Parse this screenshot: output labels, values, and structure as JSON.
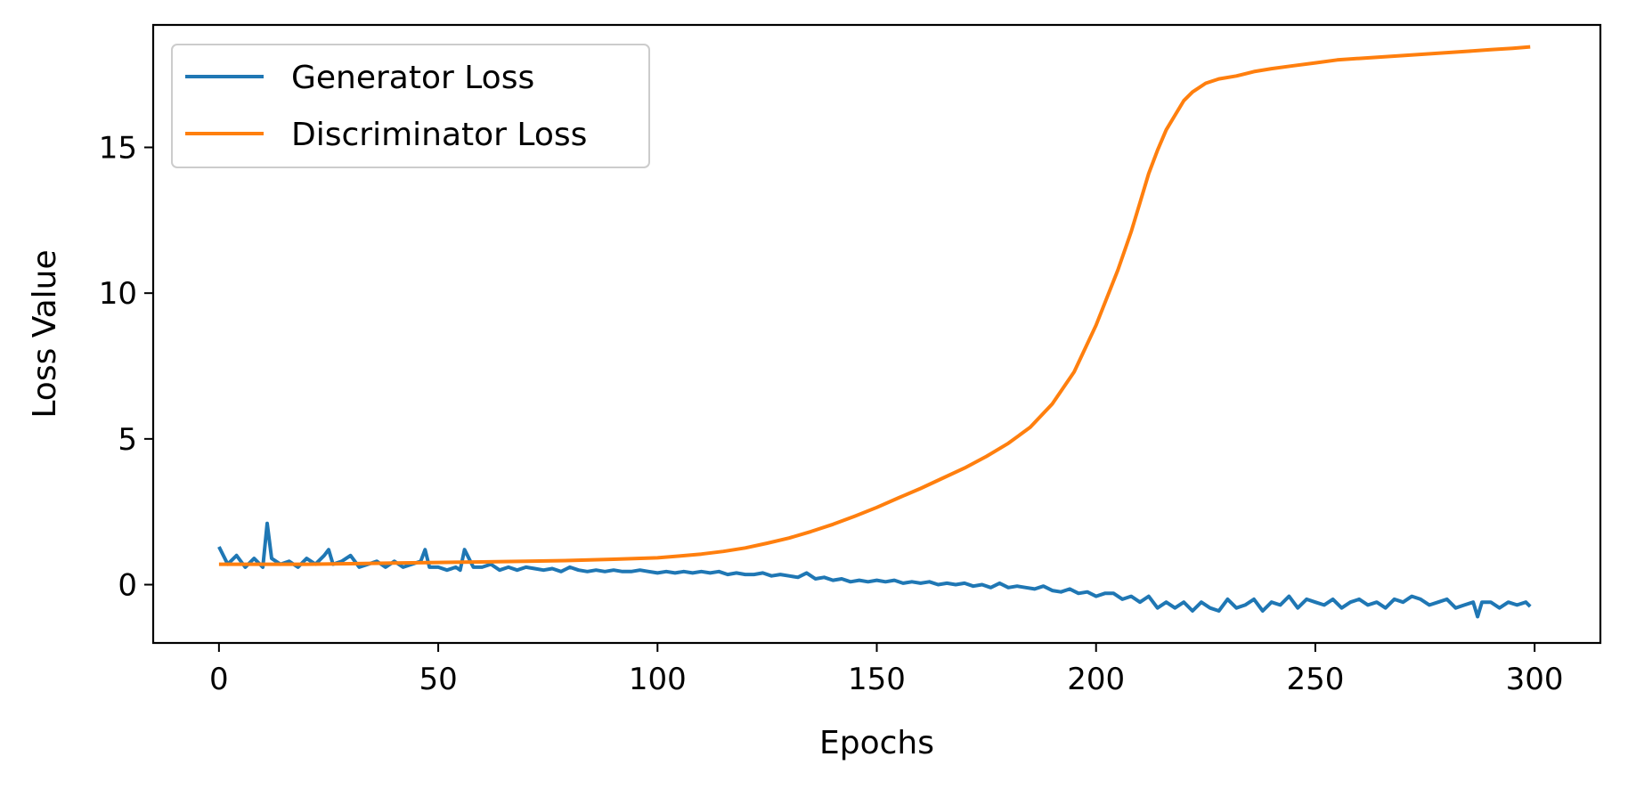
{
  "chart_data": {
    "type": "line",
    "title": "",
    "xlabel": "Epochs",
    "ylabel": "Loss Value",
    "xlim": [
      -15,
      315
    ],
    "ylim": [
      -2,
      19.2
    ],
    "xticks": [
      0,
      50,
      100,
      150,
      200,
      250,
      300
    ],
    "yticks": [
      0,
      5,
      10,
      15
    ],
    "grid": false,
    "legend_position": "upper-left",
    "series": [
      {
        "name": "Generator Loss",
        "color": "#1f77b4",
        "x": [
          0,
          2,
          4,
          6,
          8,
          10,
          11,
          12,
          14,
          16,
          18,
          20,
          22,
          24,
          25,
          26,
          28,
          30,
          32,
          34,
          36,
          38,
          40,
          42,
          44,
          46,
          47,
          48,
          50,
          52,
          54,
          55,
          56,
          58,
          60,
          62,
          64,
          66,
          68,
          70,
          72,
          74,
          76,
          78,
          80,
          82,
          84,
          86,
          88,
          90,
          92,
          94,
          96,
          98,
          100,
          102,
          104,
          106,
          108,
          110,
          112,
          114,
          116,
          118,
          120,
          122,
          124,
          126,
          128,
          130,
          132,
          134,
          136,
          138,
          140,
          142,
          144,
          146,
          148,
          150,
          152,
          154,
          156,
          158,
          160,
          162,
          164,
          166,
          168,
          170,
          172,
          174,
          176,
          178,
          180,
          182,
          184,
          186,
          188,
          190,
          192,
          194,
          196,
          198,
          200,
          202,
          204,
          206,
          208,
          210,
          212,
          214,
          216,
          218,
          220,
          222,
          224,
          226,
          228,
          230,
          232,
          234,
          236,
          238,
          240,
          242,
          244,
          246,
          248,
          250,
          252,
          254,
          256,
          258,
          260,
          262,
          264,
          266,
          268,
          270,
          272,
          274,
          276,
          278,
          280,
          282,
          284,
          286,
          287,
          288,
          290,
          292,
          294,
          296,
          298,
          299
        ],
        "y": [
          1.3,
          0.7,
          1.0,
          0.6,
          0.9,
          0.6,
          2.1,
          0.9,
          0.7,
          0.8,
          0.6,
          0.9,
          0.7,
          1.0,
          1.2,
          0.7,
          0.8,
          1.0,
          0.6,
          0.7,
          0.8,
          0.6,
          0.8,
          0.6,
          0.7,
          0.8,
          1.2,
          0.6,
          0.6,
          0.5,
          0.6,
          0.5,
          1.2,
          0.6,
          0.6,
          0.7,
          0.5,
          0.6,
          0.5,
          0.6,
          0.55,
          0.5,
          0.55,
          0.45,
          0.6,
          0.5,
          0.45,
          0.5,
          0.45,
          0.5,
          0.45,
          0.45,
          0.5,
          0.45,
          0.4,
          0.45,
          0.4,
          0.45,
          0.4,
          0.45,
          0.4,
          0.45,
          0.35,
          0.4,
          0.35,
          0.35,
          0.4,
          0.3,
          0.35,
          0.3,
          0.25,
          0.4,
          0.2,
          0.25,
          0.15,
          0.2,
          0.1,
          0.15,
          0.1,
          0.15,
          0.1,
          0.15,
          0.05,
          0.1,
          0.05,
          0.1,
          0.0,
          0.05,
          0.0,
          0.05,
          -0.05,
          0.0,
          -0.1,
          0.05,
          -0.1,
          -0.05,
          -0.1,
          -0.15,
          -0.05,
          -0.2,
          -0.25,
          -0.15,
          -0.3,
          -0.25,
          -0.4,
          -0.3,
          -0.3,
          -0.5,
          -0.4,
          -0.6,
          -0.4,
          -0.8,
          -0.6,
          -0.8,
          -0.6,
          -0.9,
          -0.6,
          -0.8,
          -0.9,
          -0.5,
          -0.8,
          -0.7,
          -0.5,
          -0.9,
          -0.6,
          -0.7,
          -0.4,
          -0.8,
          -0.5,
          -0.6,
          -0.7,
          -0.5,
          -0.8,
          -0.6,
          -0.5,
          -0.7,
          -0.6,
          -0.8,
          -0.5,
          -0.6,
          -0.4,
          -0.5,
          -0.7,
          -0.6,
          -0.5,
          -0.8,
          -0.7,
          -0.6,
          -1.1,
          -0.6,
          -0.6,
          -0.8,
          -0.6,
          -0.7,
          -0.6,
          -0.75
        ]
      },
      {
        "name": "Discriminator Loss",
        "color": "#ff7f0e",
        "x": [
          0,
          10,
          20,
          30,
          40,
          50,
          60,
          70,
          80,
          90,
          100,
          105,
          110,
          115,
          120,
          125,
          130,
          135,
          140,
          145,
          150,
          155,
          160,
          165,
          170,
          175,
          180,
          185,
          190,
          195,
          200,
          205,
          208,
          210,
          212,
          214,
          216,
          218,
          220,
          222,
          225,
          228,
          232,
          236,
          240,
          245,
          250,
          255,
          260,
          265,
          270,
          275,
          280,
          285,
          290,
          295,
          299
        ],
        "y": [
          0.7,
          0.7,
          0.7,
          0.72,
          0.74,
          0.76,
          0.78,
          0.8,
          0.83,
          0.87,
          0.92,
          0.98,
          1.05,
          1.14,
          1.26,
          1.42,
          1.6,
          1.82,
          2.07,
          2.35,
          2.65,
          2.98,
          3.3,
          3.65,
          4.0,
          4.4,
          4.85,
          5.4,
          6.2,
          7.3,
          8.9,
          10.8,
          12.1,
          13.1,
          14.1,
          14.9,
          15.6,
          16.1,
          16.6,
          16.9,
          17.2,
          17.35,
          17.45,
          17.6,
          17.7,
          17.8,
          17.9,
          18.0,
          18.05,
          18.1,
          18.15,
          18.2,
          18.25,
          18.3,
          18.35,
          18.4,
          18.45
        ]
      }
    ]
  }
}
